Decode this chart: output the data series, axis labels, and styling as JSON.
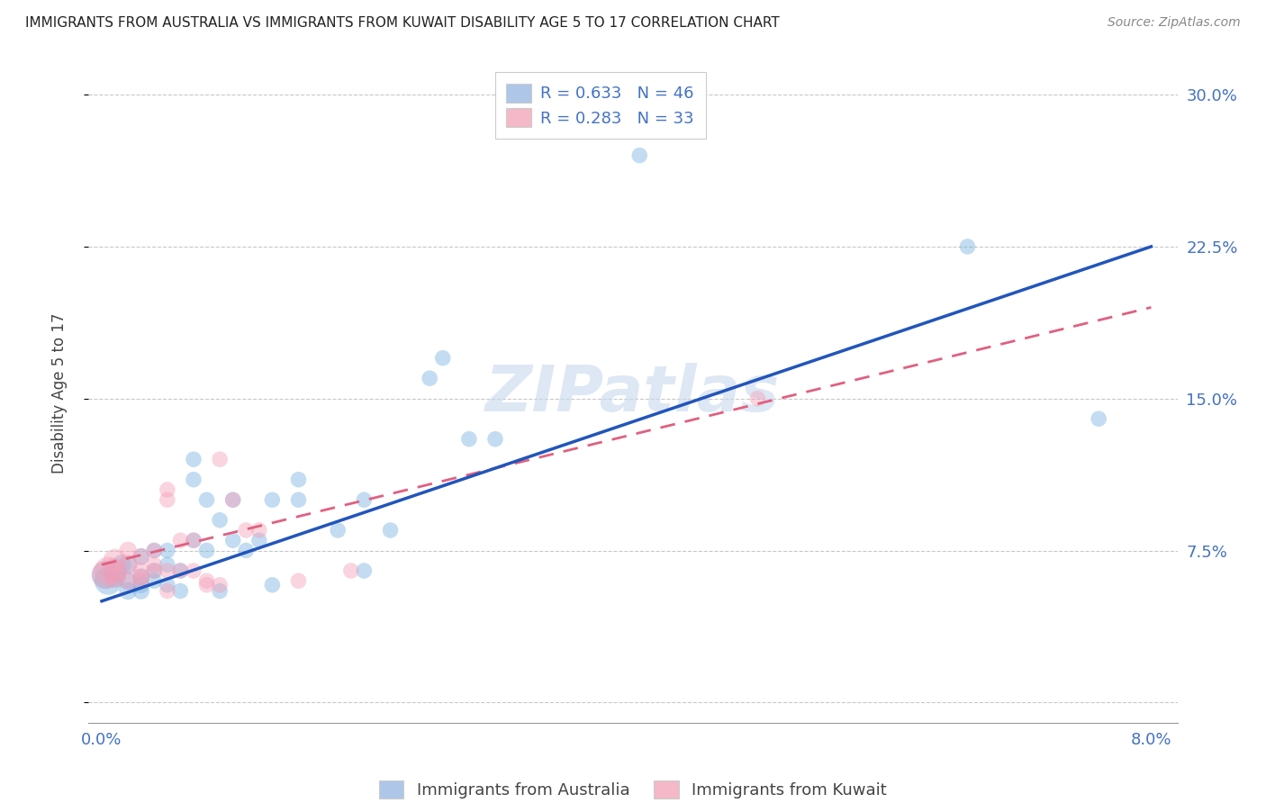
{
  "title": "IMMIGRANTS FROM AUSTRALIA VS IMMIGRANTS FROM KUWAIT DISABILITY AGE 5 TO 17 CORRELATION CHART",
  "source": "Source: ZipAtlas.com",
  "ylabel": "Disability Age 5 to 17",
  "xlim": [
    -0.001,
    0.082
  ],
  "ylim": [
    -0.01,
    0.315
  ],
  "xticks": [
    0.0,
    0.02,
    0.04,
    0.06,
    0.08
  ],
  "xtick_labels": [
    "0.0%",
    "",
    "",
    "",
    "8.0%"
  ],
  "ytick_labels_right": [
    "",
    "7.5%",
    "15.0%",
    "22.5%",
    "30.0%"
  ],
  "yticks_right": [
    0.0,
    0.075,
    0.15,
    0.225,
    0.3
  ],
  "watermark": "ZIPatlas",
  "legend_items": [
    {
      "label": "R = 0.633   N = 46",
      "color": "#aec6e8"
    },
    {
      "label": "R = 0.283   N = 33",
      "color": "#f4b8c8"
    }
  ],
  "legend_bottom": [
    {
      "label": "Immigrants from Australia",
      "color": "#aec6e8"
    },
    {
      "label": "Immigrants from Kuwait",
      "color": "#f4b8c8"
    }
  ],
  "australia_scatter": [
    [
      0.0003,
      0.063
    ],
    [
      0.0005,
      0.06
    ],
    [
      0.001,
      0.065
    ],
    [
      0.001,
      0.062
    ],
    [
      0.0015,
      0.068
    ],
    [
      0.002,
      0.06
    ],
    [
      0.002,
      0.055
    ],
    [
      0.002,
      0.068
    ],
    [
      0.003,
      0.072
    ],
    [
      0.003,
      0.058
    ],
    [
      0.003,
      0.055
    ],
    [
      0.003,
      0.062
    ],
    [
      0.004,
      0.065
    ],
    [
      0.004,
      0.075
    ],
    [
      0.004,
      0.06
    ],
    [
      0.005,
      0.075
    ],
    [
      0.005,
      0.058
    ],
    [
      0.005,
      0.068
    ],
    [
      0.006,
      0.055
    ],
    [
      0.006,
      0.065
    ],
    [
      0.007,
      0.11
    ],
    [
      0.007,
      0.12
    ],
    [
      0.007,
      0.08
    ],
    [
      0.008,
      0.1
    ],
    [
      0.008,
      0.075
    ],
    [
      0.009,
      0.09
    ],
    [
      0.009,
      0.055
    ],
    [
      0.01,
      0.1
    ],
    [
      0.01,
      0.08
    ],
    [
      0.011,
      0.075
    ],
    [
      0.012,
      0.08
    ],
    [
      0.013,
      0.1
    ],
    [
      0.013,
      0.058
    ],
    [
      0.015,
      0.11
    ],
    [
      0.015,
      0.1
    ],
    [
      0.018,
      0.085
    ],
    [
      0.02,
      0.1
    ],
    [
      0.02,
      0.065
    ],
    [
      0.022,
      0.085
    ],
    [
      0.025,
      0.16
    ],
    [
      0.026,
      0.17
    ],
    [
      0.028,
      0.13
    ],
    [
      0.03,
      0.13
    ],
    [
      0.041,
      0.27
    ],
    [
      0.066,
      0.225
    ],
    [
      0.076,
      0.14
    ]
  ],
  "kuwait_scatter": [
    [
      0.0003,
      0.063
    ],
    [
      0.0005,
      0.065
    ],
    [
      0.001,
      0.065
    ],
    [
      0.001,
      0.07
    ],
    [
      0.001,
      0.062
    ],
    [
      0.002,
      0.068
    ],
    [
      0.002,
      0.06
    ],
    [
      0.002,
      0.075
    ],
    [
      0.003,
      0.065
    ],
    [
      0.003,
      0.072
    ],
    [
      0.003,
      0.062
    ],
    [
      0.003,
      0.06
    ],
    [
      0.004,
      0.075
    ],
    [
      0.004,
      0.068
    ],
    [
      0.004,
      0.065
    ],
    [
      0.005,
      0.065
    ],
    [
      0.005,
      0.1
    ],
    [
      0.005,
      0.105
    ],
    [
      0.005,
      0.055
    ],
    [
      0.006,
      0.08
    ],
    [
      0.006,
      0.065
    ],
    [
      0.007,
      0.08
    ],
    [
      0.007,
      0.065
    ],
    [
      0.008,
      0.06
    ],
    [
      0.008,
      0.058
    ],
    [
      0.009,
      0.12
    ],
    [
      0.009,
      0.058
    ],
    [
      0.01,
      0.1
    ],
    [
      0.011,
      0.085
    ],
    [
      0.012,
      0.085
    ],
    [
      0.015,
      0.06
    ],
    [
      0.019,
      0.065
    ],
    [
      0.05,
      0.15
    ]
  ],
  "australia_scatter_sizes": [
    500,
    500,
    350,
    300,
    250,
    200,
    200,
    200,
    180,
    180,
    180,
    180,
    160,
    160,
    160,
    160,
    160,
    160,
    160,
    160,
    160,
    160,
    160,
    160,
    160,
    160,
    160,
    160,
    160,
    160,
    160,
    160,
    160,
    160,
    160,
    160,
    160,
    160,
    160,
    160,
    160,
    160,
    160,
    160,
    160,
    160
  ],
  "kuwait_scatter_sizes": [
    500,
    500,
    400,
    350,
    300,
    250,
    200,
    200,
    180,
    180,
    180,
    180,
    160,
    160,
    160,
    160,
    160,
    160,
    160,
    160,
    160,
    160,
    160,
    160,
    160,
    160,
    160,
    160,
    160,
    160,
    160,
    160,
    160
  ],
  "australia_line": [
    [
      0.0,
      0.05
    ],
    [
      0.08,
      0.225
    ]
  ],
  "kuwait_line": [
    [
      0.0,
      0.068
    ],
    [
      0.08,
      0.195
    ]
  ],
  "scatter_alpha": 0.45,
  "australia_color": "#7ab3e0",
  "kuwait_color": "#f4a0b8",
  "australia_line_color": "#2255bb",
  "kuwait_line_color": "#e06080",
  "grid_color": "#bbbbbb",
  "bg_color": "#ffffff",
  "title_fontsize": 11,
  "source_fontsize": 10,
  "watermark_fontsize": 52,
  "watermark_color": "#c8d8ee"
}
